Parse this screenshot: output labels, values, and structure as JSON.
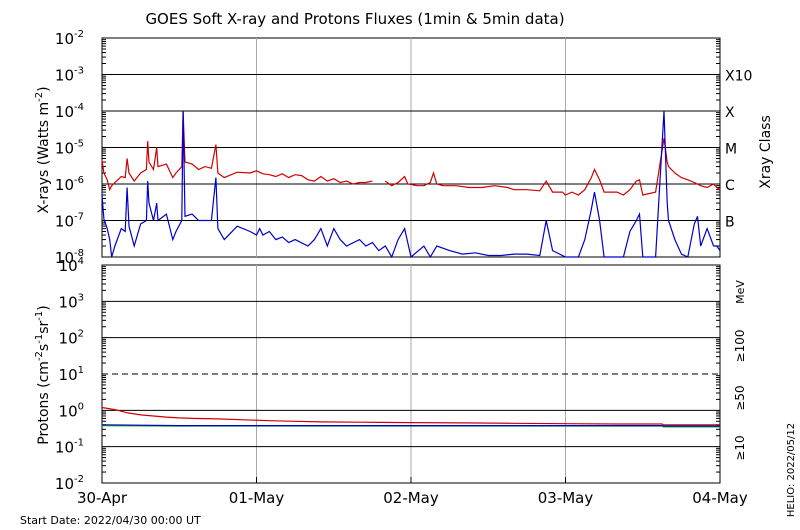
{
  "chart_data": [
    {
      "type": "line",
      "title": "GOES Soft X-ray and Protons Fluxes   (1min & 5min data)",
      "ylabel": "X-rays (Watts m",
      "ylabel_sup": "-2",
      "ylabel_end": ")",
      "yscale": "log",
      "ylim": [
        1e-08,
        0.01
      ],
      "ytick_exponents": [
        "-8",
        "-7",
        "-6",
        "-5",
        "-4",
        "-3",
        "-2"
      ],
      "ytick_base": "10",
      "class_axis_label": "Xray Class",
      "class_labels": [
        {
          "label": "B",
          "value": 1e-07
        },
        {
          "label": "C",
          "value": 1e-06
        },
        {
          "label": "M",
          "value": 1e-05
        },
        {
          "label": "X",
          "value": 0.0001
        },
        {
          "label": "X10",
          "value": 0.001
        }
      ],
      "x_unit": "hours since 2022-04-30 00:00 UT",
      "series": [
        {
          "color": "#d00000",
          "points": [
            [
              0,
              4.5e-06
            ],
            [
              0.3,
              2e-06
            ],
            [
              0.8,
              1.3e-06
            ],
            [
              1.2,
              7e-07
            ],
            [
              1.5,
              9e-07
            ],
            [
              2,
              1.1e-06
            ],
            [
              3,
              1.6e-06
            ],
            [
              3.6,
              1.5e-06
            ],
            [
              3.9,
              5e-06
            ],
            [
              4.2,
              2e-06
            ],
            [
              5,
              1.2e-06
            ],
            [
              6,
              2e-06
            ],
            [
              6.9,
              2.5e-06
            ],
            [
              7.1,
              1.5e-05
            ],
            [
              7.3,
              4e-06
            ],
            [
              8,
              2.5e-06
            ],
            [
              8.5,
              1e-05
            ],
            [
              8.7,
              3e-06
            ],
            [
              10,
              3.5e-06
            ],
            [
              11,
              1.5e-06
            ],
            [
              11.5,
              2e-06
            ],
            [
              12.4,
              3e-06
            ],
            [
              12.6,
              0.0001
            ],
            [
              12.9,
              4e-06
            ],
            [
              14,
              3.5e-06
            ],
            [
              15,
              2.5e-06
            ],
            [
              16,
              3e-06
            ],
            [
              17,
              2.7e-06
            ],
            [
              17.7,
              1.2e-05
            ],
            [
              18,
              2e-06
            ],
            [
              19,
              1.5e-06
            ],
            [
              21,
              2.1e-06
            ],
            [
              23,
              2e-06
            ],
            [
              24,
              2.3e-06
            ],
            [
              25,
              1.9e-06
            ],
            [
              26,
              1.8e-06
            ],
            [
              27,
              1.6e-06
            ],
            [
              28,
              1.9e-06
            ],
            [
              29,
              1.5e-06
            ],
            [
              30,
              1.8e-06
            ],
            [
              31,
              1.7e-06
            ],
            [
              32,
              1.3e-06
            ],
            [
              33,
              1.2e-06
            ],
            [
              34,
              1.6e-06
            ],
            [
              35,
              1.2e-06
            ],
            [
              36,
              1.4e-06
            ],
            [
              37,
              1.1e-06
            ],
            [
              38,
              1.2e-06
            ],
            [
              39,
              1e-06
            ],
            [
              40,
              1.1e-06
            ],
            [
              41,
              1.1e-06
            ],
            [
              42,
              1.2e-06
            ]
          ]
        },
        {
          "color": "#d00000",
          "points": [
            [
              44,
              1.2e-06
            ],
            [
              45,
              9e-07
            ],
            [
              46,
              1.1e-06
            ],
            [
              47,
              1.6e-06
            ],
            [
              47.5,
              1e-06
            ],
            [
              49,
              9e-07
            ],
            [
              50,
              9e-07
            ],
            [
              51,
              1.1e-06
            ],
            [
              51.5,
              2e-06
            ],
            [
              52,
              1e-06
            ],
            [
              53,
              9e-07
            ],
            [
              55,
              9e-07
            ],
            [
              57,
              8e-07
            ],
            [
              59,
              8e-07
            ],
            [
              61,
              9e-07
            ],
            [
              63,
              8e-07
            ],
            [
              64,
              7e-07
            ],
            [
              66,
              7e-07
            ],
            [
              68,
              6.5e-07
            ],
            [
              69,
              1.2e-06
            ],
            [
              70,
              6e-07
            ],
            [
              71.5,
              6e-07
            ],
            [
              72,
              5e-07
            ],
            [
              73,
              6e-07
            ],
            [
              74,
              5e-07
            ],
            [
              75,
              7e-07
            ],
            [
              76,
              1.5e-06
            ],
            [
              76.5,
              2.5e-06
            ],
            [
              77.3,
              1.3e-06
            ],
            [
              78,
              6e-07
            ],
            [
              79,
              6e-07
            ],
            [
              80,
              6e-07
            ],
            [
              81,
              5e-07
            ],
            [
              82,
              7e-07
            ],
            [
              83,
              1.2e-06
            ],
            [
              83.5,
              1.3e-06
            ],
            [
              84,
              5e-07
            ],
            [
              86,
              6e-07
            ],
            [
              87.3,
              1.8e-05
            ],
            [
              87.8,
              4e-06
            ],
            [
              88,
              3e-06
            ],
            [
              89,
              2e-06
            ],
            [
              90,
              1.5e-06
            ],
            [
              91,
              1.3e-06
            ],
            [
              92,
              1.1e-06
            ],
            [
              93,
              9e-07
            ],
            [
              94,
              8e-07
            ],
            [
              95,
              1e-06
            ],
            [
              95.5,
              8e-07
            ],
            [
              96,
              7e-07
            ]
          ]
        },
        {
          "color": "#0000cc",
          "points": [
            [
              0,
              5e-07
            ],
            [
              0.3,
              1.1e-07
            ],
            [
              0.8,
              6e-08
            ],
            [
              1.2,
              3e-08
            ],
            [
              1.5,
              1e-08
            ],
            [
              2,
              2e-08
            ],
            [
              3,
              6e-08
            ],
            [
              3.6,
              5e-08
            ],
            [
              3.9,
              8e-07
            ],
            [
              4.2,
              7e-08
            ],
            [
              5,
              2e-08
            ],
            [
              6,
              8e-08
            ],
            [
              6.9,
              1e-07
            ],
            [
              7.1,
              1.2e-06
            ],
            [
              7.3,
              3e-07
            ],
            [
              8,
              1e-07
            ],
            [
              8.5,
              3e-07
            ],
            [
              8.7,
              1e-07
            ],
            [
              10,
              1.5e-07
            ],
            [
              11,
              3e-08
            ],
            [
              11.5,
              5e-08
            ],
            [
              12.4,
              1e-07
            ],
            [
              12.6,
              0.0001
            ],
            [
              12.9,
              1.3e-07
            ],
            [
              14,
              1.5e-07
            ],
            [
              15,
              1e-07
            ],
            [
              16,
              1e-07
            ],
            [
              17,
              1e-07
            ],
            [
              17.7,
              1.5e-06
            ],
            [
              18,
              6e-08
            ],
            [
              19,
              3e-08
            ],
            [
              21,
              7e-08
            ],
            [
              23,
              5e-08
            ],
            [
              24,
              4e-08
            ],
            [
              24.5,
              6e-08
            ],
            [
              25,
              4e-08
            ],
            [
              26,
              5e-08
            ],
            [
              27,
              3e-08
            ],
            [
              28,
              3.5e-08
            ],
            [
              29,
              2.5e-08
            ],
            [
              30,
              3e-08
            ],
            [
              32,
              2e-08
            ],
            [
              33,
              3e-08
            ],
            [
              34,
              6e-08
            ],
            [
              35,
              2e-08
            ],
            [
              36,
              6e-08
            ],
            [
              37,
              3e-08
            ],
            [
              38,
              2e-08
            ],
            [
              40,
              3e-08
            ],
            [
              41,
              2e-08
            ],
            [
              42,
              2.5e-08
            ],
            [
              43,
              1.5e-08
            ],
            [
              44,
              2e-08
            ],
            [
              45,
              1e-08
            ],
            [
              46,
              3e-08
            ],
            [
              47,
              6e-08
            ],
            [
              48,
              1e-08
            ],
            [
              50,
              2e-08
            ],
            [
              51,
              1e-08
            ],
            [
              52,
              2e-08
            ],
            [
              54,
              1.5e-08
            ],
            [
              56,
              1.2e-08
            ],
            [
              58,
              1.3e-08
            ],
            [
              60,
              1.1e-08
            ],
            [
              62,
              1.1e-08
            ],
            [
              64,
              1.2e-08
            ],
            [
              66,
              1.2e-08
            ],
            [
              68,
              1.1e-08
            ],
            [
              69,
              1e-07
            ],
            [
              70,
              1.5e-08
            ],
            [
              72,
              1e-08
            ],
            [
              74,
              1e-08
            ],
            [
              75,
              3e-08
            ],
            [
              76,
              2e-07
            ],
            [
              76.5,
              6e-07
            ],
            [
              77.3,
              1e-07
            ],
            [
              78,
              1e-08
            ],
            [
              80,
              1e-08
            ],
            [
              81,
              1e-08
            ],
            [
              82,
              5e-08
            ],
            [
              83,
              1e-07
            ],
            [
              83.5,
              1.5e-07
            ],
            [
              84,
              1e-08
            ],
            [
              86,
              1e-08
            ],
            [
              87.3,
              0.0001
            ],
            [
              87.8,
              3e-07
            ],
            [
              88,
              1e-07
            ],
            [
              89,
              3e-08
            ],
            [
              90,
              1.2e-08
            ],
            [
              91,
              1e-08
            ],
            [
              92,
              8e-08
            ],
            [
              92.5,
              1.3e-07
            ],
            [
              93,
              2e-08
            ],
            [
              94,
              6e-08
            ],
            [
              95,
              2e-08
            ],
            [
              95.5,
              2e-08
            ],
            [
              96,
              1.5e-08
            ]
          ]
        }
      ]
    },
    {
      "type": "line",
      "ylabel": "Protons (cm",
      "ylabel_parts": [
        "-2",
        "s",
        "-1",
        "sr",
        "-1",
        ")"
      ],
      "yscale": "log",
      "ylim": [
        0.01,
        10000
      ],
      "ytick_labels": [
        {
          "base": "10",
          "exp": "-2",
          "value": 0.01
        },
        {
          "base": "10",
          "exp": "-1",
          "value": 0.1
        },
        {
          "base": "10",
          "exp": "0",
          "value": 1
        },
        {
          "base": "10",
          "exp": "1",
          "value": 10
        },
        {
          "base": "10",
          "exp": "2",
          "value": 100
        },
        {
          "base": "10",
          "exp": "3",
          "value": 1000
        },
        {
          "base": "10",
          "exp": "4",
          "value": 10000
        }
      ],
      "threshold_value": 10,
      "energy_unit": "MeV",
      "energy_labels": [
        {
          "label": "≥100",
          "color": "#00b000"
        },
        {
          "label": "≥50",
          "color": "#0000cc"
        },
        {
          "label": "≥10",
          "color": "#d00000"
        }
      ],
      "series": [
        {
          "color": "#d00000",
          "points": [
            [
              0,
              1.2
            ],
            [
              2,
              1.05
            ],
            [
              4,
              0.85
            ],
            [
              6,
              0.75
            ],
            [
              8,
              0.7
            ],
            [
              10,
              0.65
            ],
            [
              12,
              0.62
            ],
            [
              14,
              0.6
            ],
            [
              18,
              0.58
            ],
            [
              22,
              0.55
            ],
            [
              26,
              0.52
            ],
            [
              30,
              0.5
            ],
            [
              34,
              0.48
            ],
            [
              40,
              0.47
            ],
            [
              48,
              0.46
            ],
            [
              56,
              0.45
            ],
            [
              64,
              0.44
            ],
            [
              72,
              0.43
            ],
            [
              80,
              0.42
            ],
            [
              87,
              0.42
            ],
            [
              87.2,
              0.4
            ],
            [
              96,
              0.4
            ]
          ]
        },
        {
          "color": "#00b000",
          "points": [
            [
              0,
              0.38
            ],
            [
              12,
              0.37
            ],
            [
              24,
              0.37
            ],
            [
              36,
              0.37
            ],
            [
              48,
              0.37
            ],
            [
              60,
              0.37
            ],
            [
              72,
              0.37
            ],
            [
              87,
              0.37
            ],
            [
              87.2,
              0.35
            ],
            [
              96,
              0.35
            ]
          ]
        },
        {
          "color": "#0000cc",
          "points": [
            [
              0,
              0.4
            ],
            [
              12,
              0.38
            ],
            [
              24,
              0.38
            ],
            [
              36,
              0.38
            ],
            [
              48,
              0.38
            ],
            [
              60,
              0.38
            ],
            [
              72,
              0.38
            ],
            [
              87,
              0.38
            ],
            [
              87.2,
              0.37
            ],
            [
              96,
              0.37
            ]
          ]
        }
      ]
    }
  ],
  "x_tick_labels": [
    "30-Apr",
    "01-May",
    "02-May",
    "03-May",
    "04-May"
  ],
  "x_range_hours": [
    0,
    96
  ],
  "start_date_label": "Start Date: 2022/04/30 00:00 UT",
  "credit": "HELIO: 2022/05/12"
}
